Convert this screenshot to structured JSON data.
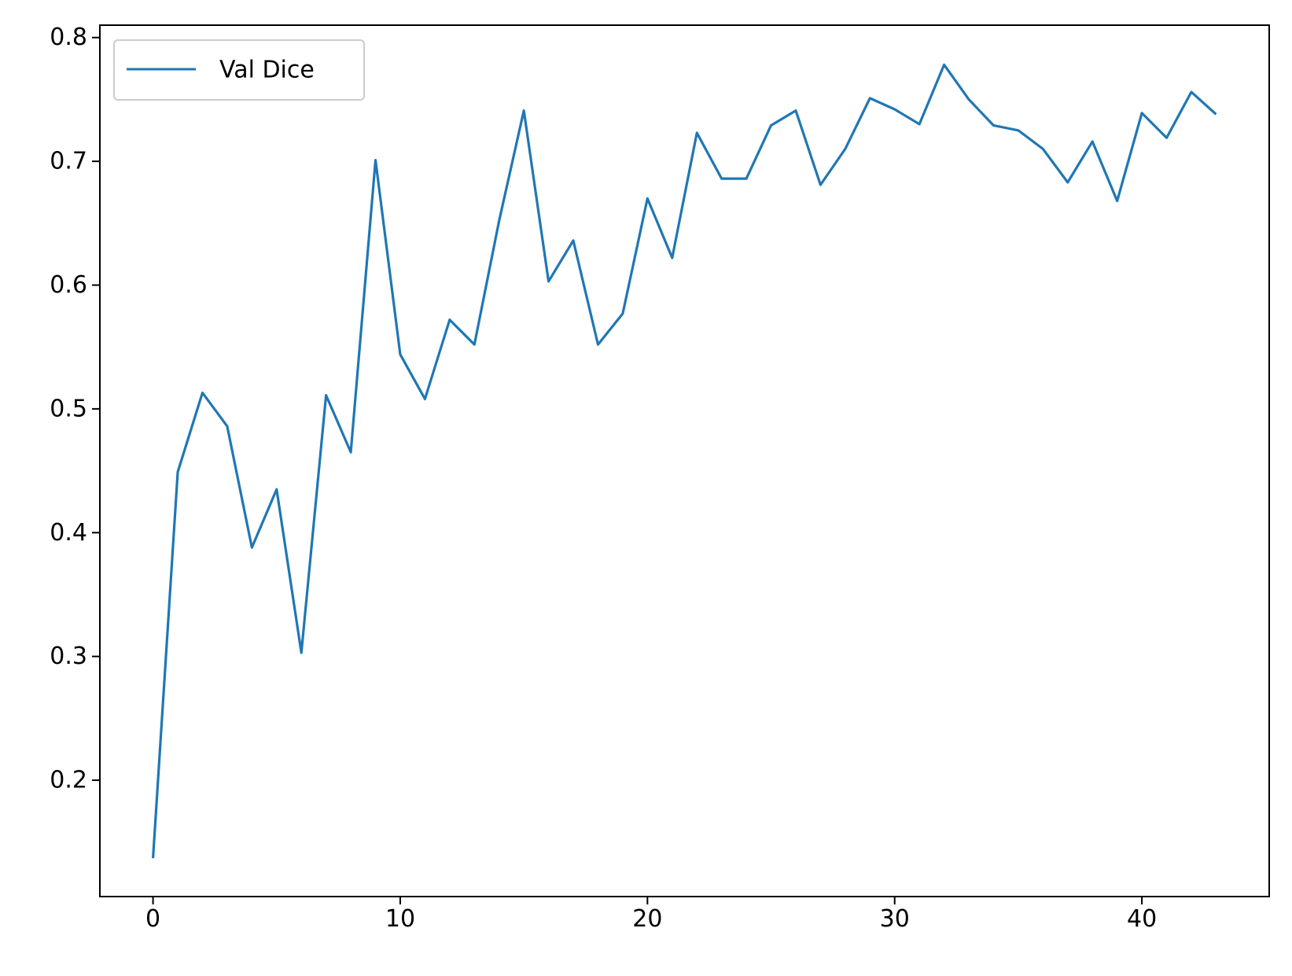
{
  "chart_data": {
    "type": "line",
    "title": "",
    "xlabel": "",
    "ylabel": "",
    "xlim": [
      -2.15,
      45.15
    ],
    "ylim": [
      0.106,
      0.81
    ],
    "xticks": [
      0,
      10,
      20,
      30,
      40
    ],
    "yticks": [
      0.2,
      0.3,
      0.4,
      0.5,
      0.6,
      0.7,
      0.8
    ],
    "grid": false,
    "legend_position": "upper left",
    "series": [
      {
        "name": "Val Dice",
        "color": "#1f77b4",
        "x": [
          0,
          1,
          2,
          3,
          4,
          5,
          6,
          7,
          8,
          9,
          10,
          11,
          12,
          13,
          14,
          15,
          16,
          17,
          18,
          19,
          20,
          21,
          22,
          23,
          24,
          25,
          26,
          27,
          28,
          29,
          30,
          31,
          32,
          33,
          34,
          35,
          36,
          37,
          38,
          39,
          40,
          41,
          42,
          43
        ],
        "y": [
          0.137,
          0.449,
          0.513,
          0.486,
          0.388,
          0.435,
          0.303,
          0.511,
          0.465,
          0.701,
          0.544,
          0.508,
          0.572,
          0.552,
          0.652,
          0.741,
          0.603,
          0.636,
          0.552,
          0.577,
          0.67,
          0.622,
          0.723,
          0.686,
          0.686,
          0.729,
          0.741,
          0.681,
          0.71,
          0.751,
          0.742,
          0.73,
          0.778,
          0.75,
          0.729,
          0.725,
          0.71,
          0.683,
          0.716,
          0.668,
          0.739,
          0.719,
          0.756,
          0.738
        ]
      }
    ]
  }
}
